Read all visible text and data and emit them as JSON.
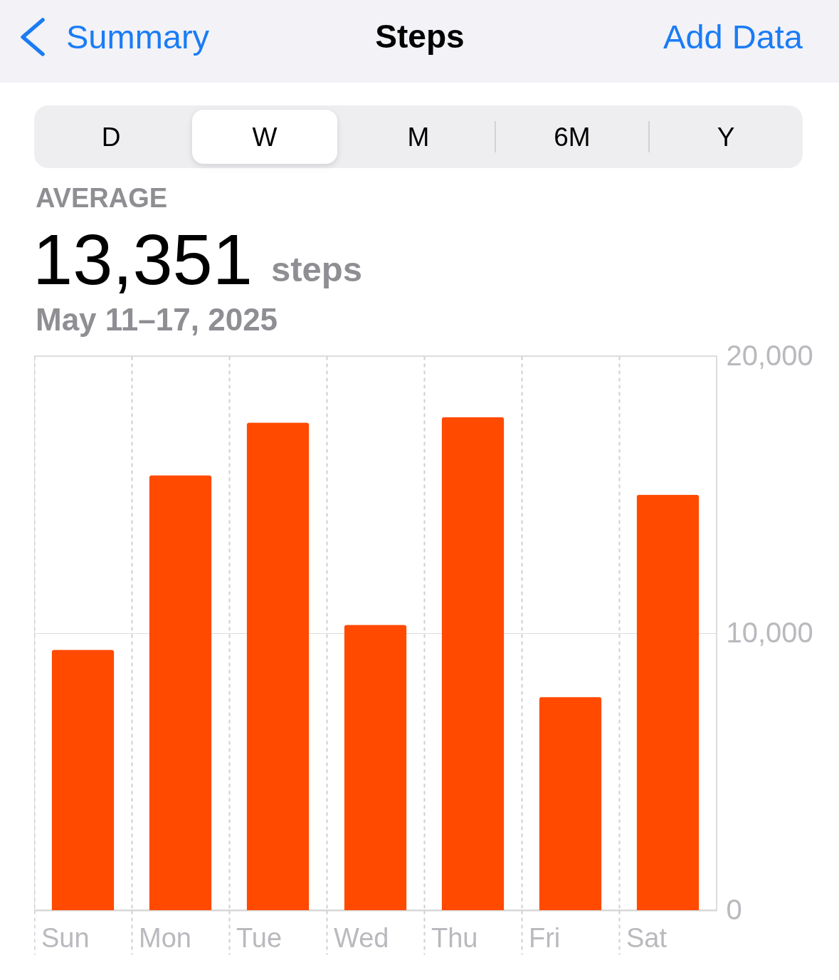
{
  "chart_data": {
    "type": "bar",
    "title": "Steps",
    "subtitle": "May 11–17, 2025",
    "annotations": [
      "Summary",
      "Add Data",
      "D",
      "W",
      "M",
      "6M",
      "Y",
      "AVERAGE",
      "13,351",
      "steps"
    ],
    "categories": [
      "Sun",
      "Mon",
      "Tue",
      "Wed",
      "Thu",
      "Fri",
      "Sat"
    ],
    "values": [
      9400,
      15700,
      17600,
      10300,
      17800,
      7700,
      15000
    ],
    "color": "#ff4a00",
    "ylim": [
      0,
      20000
    ],
    "yticks": [
      {
        "value": 0,
        "label": "0"
      },
      {
        "value": 10000,
        "label": "10,000"
      },
      {
        "value": 20000,
        "label": "20,000"
      }
    ],
    "grid": true
  }
}
